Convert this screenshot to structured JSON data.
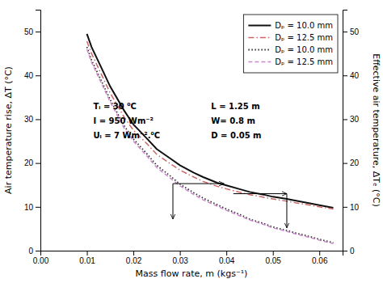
{
  "chart_data": {
    "type": "line",
    "x_label": "Mass flow rate, m (kgs⁻¹)",
    "y_label": "Air temperature rise, ΔT (°C)",
    "y2_label": "Effective air temperature, ΔTₑ (°C)",
    "xlim": [
      0.0,
      0.065
    ],
    "xticks": [
      {
        "value": 0.0,
        "label": "0.00"
      },
      0.01,
      0.02,
      0.03,
      0.04,
      0.05,
      0.06
    ],
    "ylim": [
      0,
      55
    ],
    "yticks": [
      0,
      10,
      20,
      30,
      40,
      50
    ],
    "y2lim": [
      0,
      55
    ],
    "y2ticks": [
      0,
      10,
      20,
      30,
      40,
      50
    ],
    "grid": false,
    "legend": "upper right",
    "x": [
      0.01,
      0.011,
      0.013,
      0.015,
      0.018,
      0.02,
      0.023,
      0.025,
      0.028,
      0.03,
      0.033,
      0.035,
      0.038,
      0.04,
      0.043,
      0.045,
      0.048,
      0.05,
      0.053,
      0.055,
      0.058,
      0.06,
      0.063
    ],
    "series": [
      {
        "name": "Dₚ = 10.0 mm",
        "color": "#111111",
        "line_style": "solid",
        "values": [
          49.5,
          46.5,
          42.0,
          37.5,
          32.0,
          28.8,
          25.5,
          23.2,
          21.0,
          19.5,
          17.8,
          16.8,
          15.5,
          14.9,
          14.0,
          13.4,
          12.8,
          12.3,
          11.8,
          11.4,
          10.8,
          10.4,
          9.8
        ]
      },
      {
        "name": "Dₚ = 12.5 mm",
        "color": "#cc6666",
        "line_style": "dashdot",
        "values": [
          47.8,
          45.0,
          40.5,
          36.0,
          30.5,
          27.5,
          24.3,
          22.0,
          19.8,
          18.4,
          16.8,
          15.8,
          14.7,
          14.1,
          13.3,
          12.8,
          12.2,
          11.8,
          11.3,
          10.9,
          10.4,
          10.0,
          9.5
        ]
      },
      {
        "name": "Dₚ = 10.0 mm",
        "color": "#333333",
        "line_style": "dotted",
        "values": [
          46.5,
          43.5,
          39.0,
          34.5,
          28.5,
          25.5,
          22.0,
          19.5,
          17.0,
          15.2,
          13.2,
          12.0,
          10.5,
          9.5,
          8.2,
          7.2,
          6.2,
          5.4,
          4.6,
          4.0,
          3.2,
          2.6,
          1.8
        ]
      },
      {
        "name": "Dₚ = 12.5 mm",
        "color": "#cc88cc",
        "line_style": "dashed",
        "values": [
          46.0,
          43.0,
          38.5,
          34.0,
          28.0,
          25.0,
          21.5,
          19.0,
          16.5,
          14.8,
          12.8,
          11.6,
          10.2,
          9.2,
          7.9,
          7.0,
          6.0,
          5.2,
          4.4,
          3.8,
          3.0,
          2.4,
          1.6
        ]
      }
    ],
    "arrows": [
      {
        "from": [
          0.0285,
          15.3
        ],
        "to": [
          0.0395,
          15.3
        ]
      },
      {
        "from": [
          0.0285,
          15.3
        ],
        "to": [
          0.0285,
          7.2
        ]
      },
      {
        "from": [
          0.0415,
          13.0
        ],
        "to": [
          0.053,
          13.0
        ]
      },
      {
        "from": [
          0.053,
          13.0
        ],
        "to": [
          0.053,
          5.2
        ]
      }
    ],
    "annotations": [
      {
        "lines": [
          "Tᵢ = 30 ⁰C",
          "I = 950 Wm⁻²",
          "Uₗ = 7 Wm⁻².⁰C"
        ]
      },
      {
        "lines": [
          "L = 1.25 m",
          "W= 0.8 m",
          "D = 0.05 m"
        ]
      }
    ]
  }
}
